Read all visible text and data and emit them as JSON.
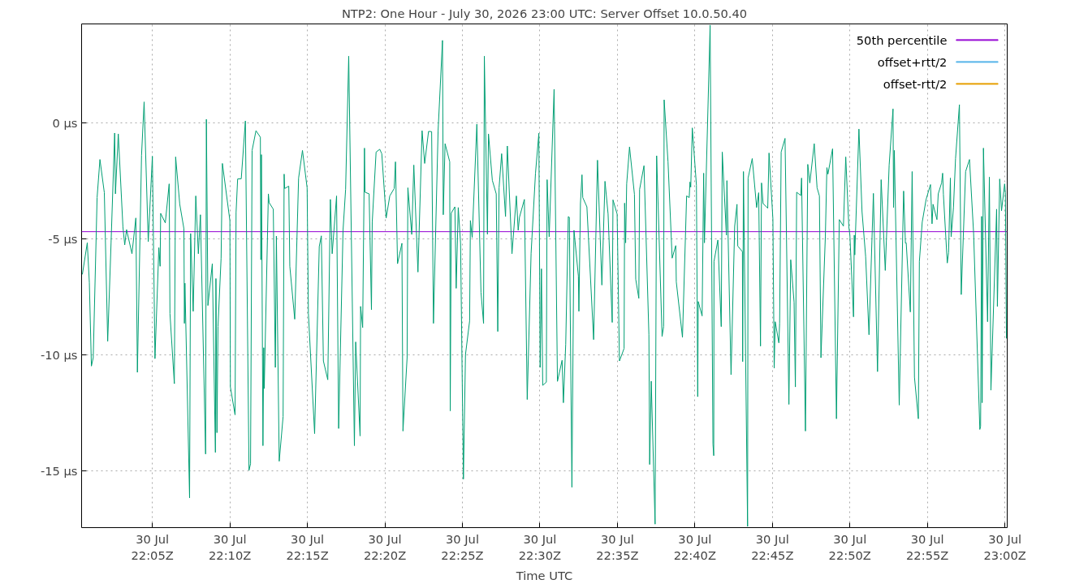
{
  "chart_data": {
    "type": "line",
    "title": "NTP2: One Hour - July 30, 2026 23:00 UTC: Server Offset 10.0.50.40",
    "xlabel": "Time UTC",
    "xlim": [
      "2026-07-30T22:00:26",
      "2026-07-30T23:00:09"
    ],
    "ylim": [
      -17.45,
      4.25
    ],
    "xticks": [
      {
        "value": "2026-07-30T22:05",
        "label": "30 Jul\n22:05Z"
      },
      {
        "value": "2026-07-30T22:10",
        "label": "30 Jul\n22:10Z"
      },
      {
        "value": "2026-07-30T22:15",
        "label": "30 Jul\n22:15Z"
      },
      {
        "value": "2026-07-30T22:20",
        "label": "30 Jul\n22:20Z"
      },
      {
        "value": "2026-07-30T22:25",
        "label": "30 Jul\n22:25Z"
      },
      {
        "value": "2026-07-30T22:30",
        "label": "30 Jul\n22:30Z"
      },
      {
        "value": "2026-07-30T22:35",
        "label": "30 Jul\n22:35Z"
      },
      {
        "value": "2026-07-30T22:40",
        "label": "30 Jul\n22:40Z"
      },
      {
        "value": "2026-07-30T22:45",
        "label": "30 Jul\n22:45Z"
      },
      {
        "value": "2026-07-30T22:50",
        "label": "30 Jul\n22:50Z"
      },
      {
        "value": "2026-07-30T22:55",
        "label": "30 Jul\n22:55Z"
      },
      {
        "value": "2026-07-30T23:00",
        "label": "30 Jul\n23:00Z"
      }
    ],
    "yticks": [
      {
        "value": -15,
        "label": "-15 µs"
      },
      {
        "value": -10,
        "label": "-10 µs"
      },
      {
        "value": -5,
        "label": "-5 µs"
      },
      {
        "value": 0,
        "label": "0 µs"
      }
    ],
    "grid": true,
    "legend": "top right",
    "series": [
      {
        "name": "50th percentile",
        "color": "#9400d3",
        "x": [
          "2026-07-30T22:00:26",
          "2026-07-30T23:00:09"
        ],
        "values": [
          -4.7,
          -4.7
        ]
      },
      {
        "color": "#009e73",
        "x": [
          "2026-07-30T22:00:29",
          "2026-07-30T22:00:48",
          "2026-07-30T22:00:56",
          "2026-07-30T22:01:04",
          "2026-07-30T22:01:11",
          "2026-07-30T22:01:26",
          "2026-07-30T22:01:37",
          "2026-07-30T22:01:54",
          "2026-07-30T22:02:07",
          "2026-07-30T22:02:20",
          "2026-07-30T22:02:34",
          "2026-07-30T22:02:37",
          "2026-07-30T22:02:48",
          "2026-07-30T22:03:06",
          "2026-07-30T22:03:13",
          "2026-07-30T22:03:20",
          "2026-07-30T22:03:41",
          "2026-07-30T22:03:56",
          "2026-07-30T22:04:02",
          "2026-07-30T22:04:18",
          "2026-07-30T22:04:28",
          "2026-07-30T22:04:44",
          "2026-07-30T22:05:00",
          "2026-07-30T22:05:10",
          "2026-07-30T22:05:25",
          "2026-07-30T22:05:30",
          "2026-07-30T22:05:32",
          "2026-07-30T22:05:50",
          "2026-07-30T22:06:05",
          "2026-07-30T22:06:08",
          "2026-07-30T22:06:25",
          "2026-07-30T22:06:30",
          "2026-07-30T22:06:46",
          "2026-07-30T22:07:02",
          "2026-07-30T22:07:04",
          "2026-07-30T22:07:06",
          "2026-07-30T22:07:24",
          "2026-07-30T22:07:28",
          "2026-07-30T22:07:38",
          "2026-07-30T22:07:48",
          "2026-07-30T22:07:58",
          "2026-07-30T22:08:06",
          "2026-07-30T22:08:26",
          "2026-07-30T22:08:29",
          "2026-07-30T22:08:35",
          "2026-07-30T22:08:52",
          "2026-07-30T22:09:04",
          "2026-07-30T22:09:06",
          "2026-07-30T22:09:10",
          "2026-07-30T22:09:14",
          "2026-07-30T22:09:26",
          "2026-07-30T22:09:31",
          "2026-07-30T22:10:00",
          "2026-07-30T22:10:02",
          "2026-07-30T22:10:20",
          "2026-07-30T22:10:24",
          "2026-07-30T22:10:30",
          "2026-07-30T22:10:44",
          "2026-07-30T22:11:00",
          "2026-07-30T22:11:14",
          "2026-07-30T22:11:20",
          "2026-07-30T22:11:26",
          "2026-07-30T22:11:41",
          "2026-07-30T22:11:58",
          "2026-07-30T22:12:00",
          "2026-07-30T22:12:02",
          "2026-07-30T22:12:08",
          "2026-07-30T22:12:11",
          "2026-07-30T22:12:13",
          "2026-07-30T22:12:29",
          "2026-07-30T22:12:32",
          "2026-07-30T22:12:48",
          "2026-07-30T22:12:56",
          "2026-07-30T22:13:00",
          "2026-07-30T22:13:11",
          "2026-07-30T22:13:26",
          "2026-07-30T22:13:30",
          "2026-07-30T22:13:32",
          "2026-07-30T22:13:48",
          "2026-07-30T22:13:52",
          "2026-07-30T22:14:11",
          "2026-07-30T22:14:26",
          "2026-07-30T22:14:41",
          "2026-07-30T22:14:59",
          "2026-07-30T22:15:04",
          "2026-07-30T22:15:28",
          "2026-07-30T22:15:46",
          "2026-07-30T22:15:54",
          "2026-07-30T22:16:02",
          "2026-07-30T22:16:19",
          "2026-07-30T22:16:29",
          "2026-07-30T22:16:36",
          "2026-07-30T22:16:53",
          "2026-07-30T22:17:01",
          "2026-07-30T22:17:18",
          "2026-07-30T22:17:28",
          "2026-07-30T22:17:40",
          "2026-07-30T22:18:02",
          "2026-07-30T22:18:07",
          "2026-07-30T22:18:24",
          "2026-07-30T22:18:26",
          "2026-07-30T22:18:34",
          "2026-07-30T22:18:41",
          "2026-07-30T22:18:43",
          "2026-07-30T22:18:59",
          "2026-07-30T22:19:08",
          "2026-07-30T22:19:11",
          "2026-07-30T22:19:26",
          "2026-07-30T22:19:40",
          "2026-07-30T22:19:48",
          "2026-07-30T22:20:05",
          "2026-07-30T22:20:19",
          "2026-07-30T22:20:36",
          "2026-07-30T22:20:41",
          "2026-07-30T22:20:49",
          "2026-07-30T22:21:06",
          "2026-07-30T22:21:10",
          "2026-07-30T22:21:26",
          "2026-07-30T22:21:29",
          "2026-07-30T22:21:44",
          "2026-07-30T22:21:52",
          "2026-07-30T22:22:08",
          "2026-07-30T22:22:24",
          "2026-07-30T22:22:34",
          "2026-07-30T22:22:49",
          "2026-07-30T22:23:01",
          "2026-07-30T22:23:08",
          "2026-07-30T22:23:26",
          "2026-07-30T22:23:43",
          "2026-07-30T22:23:46",
          "2026-07-30T22:23:53",
          "2026-07-30T22:24:11",
          "2026-07-30T22:24:13",
          "2026-07-30T22:24:17",
          "2026-07-30T22:24:31",
          "2026-07-30T22:24:36",
          "2026-07-30T22:24:44",
          "2026-07-30T22:24:53",
          "2026-07-30T22:25:04",
          "2026-07-30T22:25:12",
          "2026-07-30T22:25:28",
          "2026-07-30T22:25:31",
          "2026-07-30T22:25:38",
          "2026-07-30T22:25:56",
          "2026-07-30T22:26:12",
          "2026-07-30T22:26:22",
          "2026-07-30T22:26:25",
          "2026-07-30T22:26:37",
          "2026-07-30T22:26:41",
          "2026-07-30T22:26:56",
          "2026-07-30T22:27:11",
          "2026-07-30T22:27:17",
          "2026-07-30T22:27:22",
          "2026-07-30T22:27:32",
          "2026-07-30T22:27:47",
          "2026-07-30T22:27:54",
          "2026-07-30T22:28:12",
          "2026-07-30T22:28:29",
          "2026-07-30T22:28:36",
          "2026-07-30T22:28:41",
          "2026-07-30T22:29:00",
          "2026-07-30T22:29:11",
          "2026-07-30T22:29:26",
          "2026-07-30T22:29:43",
          "2026-07-30T22:29:56",
          "2026-07-30T22:30:01",
          "2026-07-30T22:30:06",
          "2026-07-30T22:30:11",
          "2026-07-30T22:30:25",
          "2026-07-30T22:30:28",
          "2026-07-30T22:30:36",
          "2026-07-30T22:30:55",
          "2026-07-30T22:31:08",
          "2026-07-30T22:31:26",
          "2026-07-30T22:31:31",
          "2026-07-30T22:31:40",
          "2026-07-30T22:31:50",
          "2026-07-30T22:31:54",
          "2026-07-30T22:32:04",
          "2026-07-30T22:32:12",
          "2026-07-30T22:32:29",
          "2026-07-30T22:32:31",
          "2026-07-30T22:32:37",
          "2026-07-30T22:32:43",
          "2026-07-30T22:32:46",
          "2026-07-30T22:33:02",
          "2026-07-30T22:33:28",
          "2026-07-30T22:33:43",
          "2026-07-30T22:34:00",
          "2026-07-30T22:34:12",
          "2026-07-30T22:34:24",
          "2026-07-30T22:34:40",
          "2026-07-30T22:34:43",
          "2026-07-30T22:34:59",
          "2026-07-30T22:35:08",
          "2026-07-30T22:35:26",
          "2026-07-30T22:35:28",
          "2026-07-30T22:35:32",
          "2026-07-30T22:35:36",
          "2026-07-30T22:35:47",
          "2026-07-30T22:36:06",
          "2026-07-30T22:36:11",
          "2026-07-30T22:36:23",
          "2026-07-30T22:36:26",
          "2026-07-30T22:36:43",
          "2026-07-30T22:37:02",
          "2026-07-30T22:37:05",
          "2026-07-30T22:37:11",
          "2026-07-30T22:37:26",
          "2026-07-30T22:37:32",
          "2026-07-30T22:37:53",
          "2026-07-30T22:37:59",
          "2026-07-30T22:38:01",
          "2026-07-30T22:38:16",
          "2026-07-30T22:38:32",
          "2026-07-30T22:38:46",
          "2026-07-30T22:38:48",
          "2026-07-30T22:39:12",
          "2026-07-30T22:39:28",
          "2026-07-30T22:39:38",
          "2026-07-30T22:39:41",
          "2026-07-30T22:39:44",
          "2026-07-30T22:39:50",
          "2026-07-30T22:40:06",
          "2026-07-30T22:40:11",
          "2026-07-30T22:40:13",
          "2026-07-30T22:40:28",
          "2026-07-30T22:40:34",
          "2026-07-30T22:40:37",
          "2026-07-30T22:40:59",
          "2026-07-30T22:41:10",
          "2026-07-30T22:41:13",
          "2026-07-30T22:41:14",
          "2026-07-30T22:41:29",
          "2026-07-30T22:41:42",
          "2026-07-30T22:41:46",
          "2026-07-30T22:42:02",
          "2026-07-30T22:42:04",
          "2026-07-30T22:42:20",
          "2026-07-30T22:42:34",
          "2026-07-30T22:42:43",
          "2026-07-30T22:42:46",
          "2026-07-30T22:43:04",
          "2026-07-30T22:43:05",
          "2026-07-30T22:43:08",
          "2026-07-30T22:43:24",
          "2026-07-30T22:43:26",
          "2026-07-30T22:43:42",
          "2026-07-30T22:43:59",
          "2026-07-30T22:44:07",
          "2026-07-30T22:44:14",
          "2026-07-30T22:44:18",
          "2026-07-30T22:44:24",
          "2026-07-30T22:44:42",
          "2026-07-30T22:44:47",
          "2026-07-30T22:45:02",
          "2026-07-30T22:45:07",
          "2026-07-30T22:45:11",
          "2026-07-30T22:45:25",
          "2026-07-30T22:45:28",
          "2026-07-30T22:45:34",
          "2026-07-30T22:45:49",
          "2026-07-30T22:46:04",
          "2026-07-30T22:46:11",
          "2026-07-30T22:46:24",
          "2026-07-30T22:46:29",
          "2026-07-30T22:46:34",
          "2026-07-30T22:46:50",
          "2026-07-30T22:46:53",
          "2026-07-30T22:47:08",
          "2026-07-30T22:47:17",
          "2026-07-30T22:47:25",
          "2026-07-30T22:47:42",
          "2026-07-30T22:47:53",
          "2026-07-30T22:48:02",
          "2026-07-30T22:48:08",
          "2026-07-30T22:48:25",
          "2026-07-30T22:48:31",
          "2026-07-30T22:48:35",
          "2026-07-30T22:48:53",
          "2026-07-30T22:49:08",
          "2026-07-30T22:49:19",
          "2026-07-30T22:49:35",
          "2026-07-30T22:49:44",
          "2026-07-30T22:49:56",
          "2026-07-30T22:50:00",
          "2026-07-30T22:50:14",
          "2026-07-30T22:50:17",
          "2026-07-30T22:50:19",
          "2026-07-30T22:50:35",
          "2026-07-30T22:50:47",
          "2026-07-30T22:51:01",
          "2026-07-30T22:51:14",
          "2026-07-30T22:51:31",
          "2026-07-30T22:51:47",
          "2026-07-30T22:52:01",
          "2026-07-30T22:52:17",
          "2026-07-30T22:52:32",
          "2026-07-30T22:52:47",
          "2026-07-30T22:52:49",
          "2026-07-30T22:52:52",
          "2026-07-30T22:53:11",
          "2026-07-30T22:53:28",
          "2026-07-30T22:53:35",
          "2026-07-30T22:53:38",
          "2026-07-30T22:53:54",
          "2026-07-30T22:54:01",
          "2026-07-30T22:54:10",
          "2026-07-30T22:54:25",
          "2026-07-30T22:54:29",
          "2026-07-30T22:54:40",
          "2026-07-30T22:54:55",
          "2026-07-30T22:55:12",
          "2026-07-30T22:55:18",
          "2026-07-30T22:55:22",
          "2026-07-30T22:55:37",
          "2026-07-30T22:55:42",
          "2026-07-30T22:55:55",
          "2026-07-30T22:55:59",
          "2026-07-30T22:56:02",
          "2026-07-30T22:56:17",
          "2026-07-30T22:56:22",
          "2026-07-30T22:56:29",
          "2026-07-30T22:56:32",
          "2026-07-30T22:56:41",
          "2026-07-30T22:56:49",
          "2026-07-30T22:57:04",
          "2026-07-30T22:57:11",
          "2026-07-30T22:57:28",
          "2026-07-30T22:57:43",
          "2026-07-30T22:57:59",
          "2026-07-30T22:58:23",
          "2026-07-30T22:58:26",
          "2026-07-30T22:58:30",
          "2026-07-30T22:58:32",
          "2026-07-30T22:58:37",
          "2026-07-30T22:58:53",
          "2026-07-30T22:59:00",
          "2026-07-30T22:59:06",
          "2026-07-30T22:59:28",
          "2026-07-30T22:59:31",
          "2026-07-30T22:59:40",
          "2026-07-30T22:59:47",
          "2026-07-30T22:59:59",
          "2026-07-30T23:00:02",
          "2026-07-30T23:00:06"
        ],
        "values": [
          -6.54,
          -5.18,
          -6.89,
          -10.49,
          -10.13,
          -3.23,
          -1.59,
          -3.02,
          -9.42,
          -5.2,
          -0.45,
          -3.07,
          -0.49,
          -4.5,
          -5.27,
          -4.61,
          -5.65,
          -4.11,
          -10.76,
          -1.41,
          0.89,
          -5.13,
          -1.45,
          -10.17,
          -5.39,
          -6.19,
          -3.91,
          -4.32,
          -2.64,
          -8.23,
          -11.25,
          -1.48,
          -3.52,
          -4.57,
          -8.65,
          -6.92,
          -16.17,
          -4.78,
          -8.13,
          -3.16,
          -5.65,
          -3.97,
          -14.28,
          0.14,
          -7.88,
          -6.08,
          -14.21,
          -6.72,
          -13.36,
          -8.79,
          -5.84,
          -1.76,
          -4.22,
          -11.39,
          -12.59,
          -3.87,
          -2.43,
          -2.42,
          0.07,
          -14.98,
          -14.7,
          -1.2,
          -0.35,
          -0.63,
          -5.91,
          -1.38,
          -13.92,
          -9.7,
          -11.46,
          -3.07,
          -3.45,
          -3.73,
          -10.55,
          -4.89,
          -14.59,
          -12.66,
          -2.22,
          -2.84,
          -2.74,
          -6.19,
          -8.47,
          -2.39,
          -1.2,
          -2.81,
          -8.23,
          -13.4,
          -5.34,
          -4.88,
          -10.27,
          -11.08,
          -3.31,
          -5.65,
          -3.16,
          -13.18,
          -4.64,
          -2.88,
          2.86,
          -13.92,
          -9.45,
          -13.5,
          -7.92,
          -8.83,
          -1.1,
          -3.0,
          -3.07,
          -8.06,
          -4.29,
          -1.27,
          -1.15,
          -1.34,
          -4.11,
          -3.16,
          -2.84,
          -1.69,
          -6.08,
          -5.2,
          -13.29,
          -10.13,
          -2.81,
          -4.82,
          -1.83,
          -6.44,
          -0.35,
          -1.76,
          -0.38,
          -0.39,
          -8.65,
          -0.35,
          3.54,
          -3.97,
          -0.91,
          -1.69,
          -12.42,
          -3.9,
          -3.63,
          -7.14,
          -3.66,
          -5.2,
          -15.36,
          -9.99,
          -8.55,
          -4.22,
          -4.95,
          -0.07,
          -7.31,
          -8.65,
          2.86,
          -4.81,
          -0.49,
          -2.49,
          -3.07,
          -9.0,
          -2.81,
          -1.34,
          -4.05,
          -1.01,
          -5.65,
          -3.16,
          -4.64,
          -4.08,
          -3.31,
          -11.93,
          -5.63,
          -2.18,
          -0.46,
          -10.55,
          -6.3,
          -11.32,
          -11.18,
          -2.46,
          -4.92,
          1.43,
          -11.15,
          -10.24,
          -12.07,
          -9.56,
          -4.05,
          -4.08,
          -15.71,
          -4.64,
          -6.61,
          -8.13,
          -3.49,
          -2.25,
          -3.23,
          -3.63,
          -9.35,
          -1.62,
          -7.0,
          -2.53,
          -3.94,
          -8.61,
          -3.33,
          -3.94,
          -10.27,
          -9.73,
          -3.47,
          -5.18,
          -2.64,
          -1.05,
          -3.09,
          -6.75,
          -7.57,
          -2.88,
          -1.86,
          -9.14,
          -14.73,
          -11.14,
          -17.3,
          -1.43,
          -9.21,
          -8.79,
          0.98,
          -1.69,
          -5.84,
          -5.3,
          -6.86,
          -9.25,
          -3.16,
          -3.23,
          -2.56,
          -2.78,
          -0.23,
          -2.7,
          -11.81,
          -7.71,
          -8.33,
          -2.18,
          -5.18,
          4.2,
          -13.85,
          -14.35,
          -5.98,
          -5.06,
          -8.79,
          -1.27,
          -4.85,
          -2.5,
          -10.86,
          -4.47,
          -3.52,
          -5.32,
          -5.56,
          -10.3,
          -2.11,
          -17.4,
          -2.39,
          -1.55,
          -3.66,
          -3.02,
          -9.63,
          -2.6,
          -3.49,
          -3.69,
          -1.31,
          -4.15,
          -10.58,
          -8.58,
          -9.49,
          -8.65,
          -1.27,
          -0.68,
          -12.14,
          -5.91,
          -7.74,
          -11.39,
          -3.0,
          -3.14,
          -2.39,
          -13.29,
          -1.8,
          -2.6,
          -0.91,
          -2.81,
          -3.16,
          -10.13,
          -4.92,
          -1.94,
          -2.22,
          -1.13,
          -12.76,
          -4.18,
          -4.46,
          -1.48,
          -4.5,
          -4.85,
          -8.37,
          -4.85,
          -5.7,
          -0.28,
          -3.84,
          -5.77,
          -9.14,
          -3.05,
          -10.73,
          -2.46,
          -6.37,
          -1.83,
          0.59,
          -3.66,
          -1.2,
          -12.17,
          -2.95,
          -5.2,
          -5.18,
          -8.16,
          -2.11,
          -10.97,
          -12.76,
          -5.98,
          -4.29,
          -3.31,
          -2.67,
          -4.36,
          -3.52,
          -4.18,
          -3.07,
          -2.6,
          -2.18,
          -3.09,
          -6.05,
          -5.6,
          -2.39,
          -4.92,
          -3.66,
          -1.55,
          0.77,
          -7.41,
          -2.11,
          -1.59,
          -4.78,
          -13.22,
          -13.08,
          -4.04,
          -12.07,
          -1.1,
          -8.58,
          -2.35,
          -11.53,
          -3.73,
          -7.92,
          -2.43,
          -3.8,
          -2.64,
          -3.02,
          -9.3
        ]
      },
      {
        "name": "offset+rtt/2",
        "color": "#56b4e9"
      },
      {
        "name": "offset-rtt/2",
        "color": "#e69f00"
      }
    ]
  }
}
